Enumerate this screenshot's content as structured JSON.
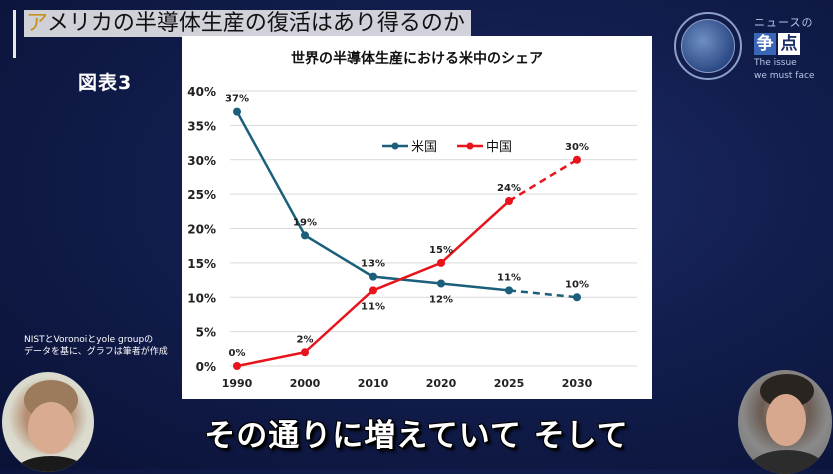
{
  "header": {
    "title_first_char": "ア",
    "title_rest": "メリカの半導体生産の復活はあり得るのか",
    "figure_label": "図表3"
  },
  "source_note": {
    "line1": "NISTとVoronoiとyole groupの",
    "line2": "データを基に、グラフは筆者が作成"
  },
  "brand": {
    "top": "ニュースの",
    "kanji1": "争",
    "kanji2": "点",
    "en_line1": "The issue",
    "en_line2": "we must face"
  },
  "subtitle": "その通りに増えていて そして",
  "colors": {
    "us": "#1c5f7a",
    "china": "#e8141b",
    "title_accent": "#c8921e",
    "background": "#121d4d"
  },
  "chart_data": {
    "type": "line",
    "title": "世界の半導体生産における米中のシェア",
    "categories": [
      "1990",
      "2000",
      "2010",
      "2020",
      "2025",
      "2030"
    ],
    "yticks": [
      "0%",
      "5%",
      "10%",
      "15%",
      "20%",
      "25%",
      "30%",
      "35%",
      "40%"
    ],
    "ylim": [
      0,
      40
    ],
    "grid": true,
    "legend_position": "top-center",
    "projected_from_index": 4,
    "series": [
      {
        "name": "米国",
        "key": "us",
        "values": [
          37,
          19,
          13,
          12,
          11,
          10
        ],
        "labels": [
          "37%",
          "19%",
          "13%",
          "12%",
          "11%",
          "10%"
        ],
        "label_pos": [
          "above",
          "above",
          "above",
          "below",
          "above",
          "above"
        ]
      },
      {
        "name": "中国",
        "key": "china",
        "values": [
          0,
          2,
          11,
          15,
          24,
          30
        ],
        "labels": [
          "0%",
          "2%",
          "11%",
          "15%",
          "24%",
          "30%"
        ],
        "label_pos": [
          "above",
          "above",
          "below",
          "above",
          "above",
          "above"
        ]
      }
    ]
  }
}
